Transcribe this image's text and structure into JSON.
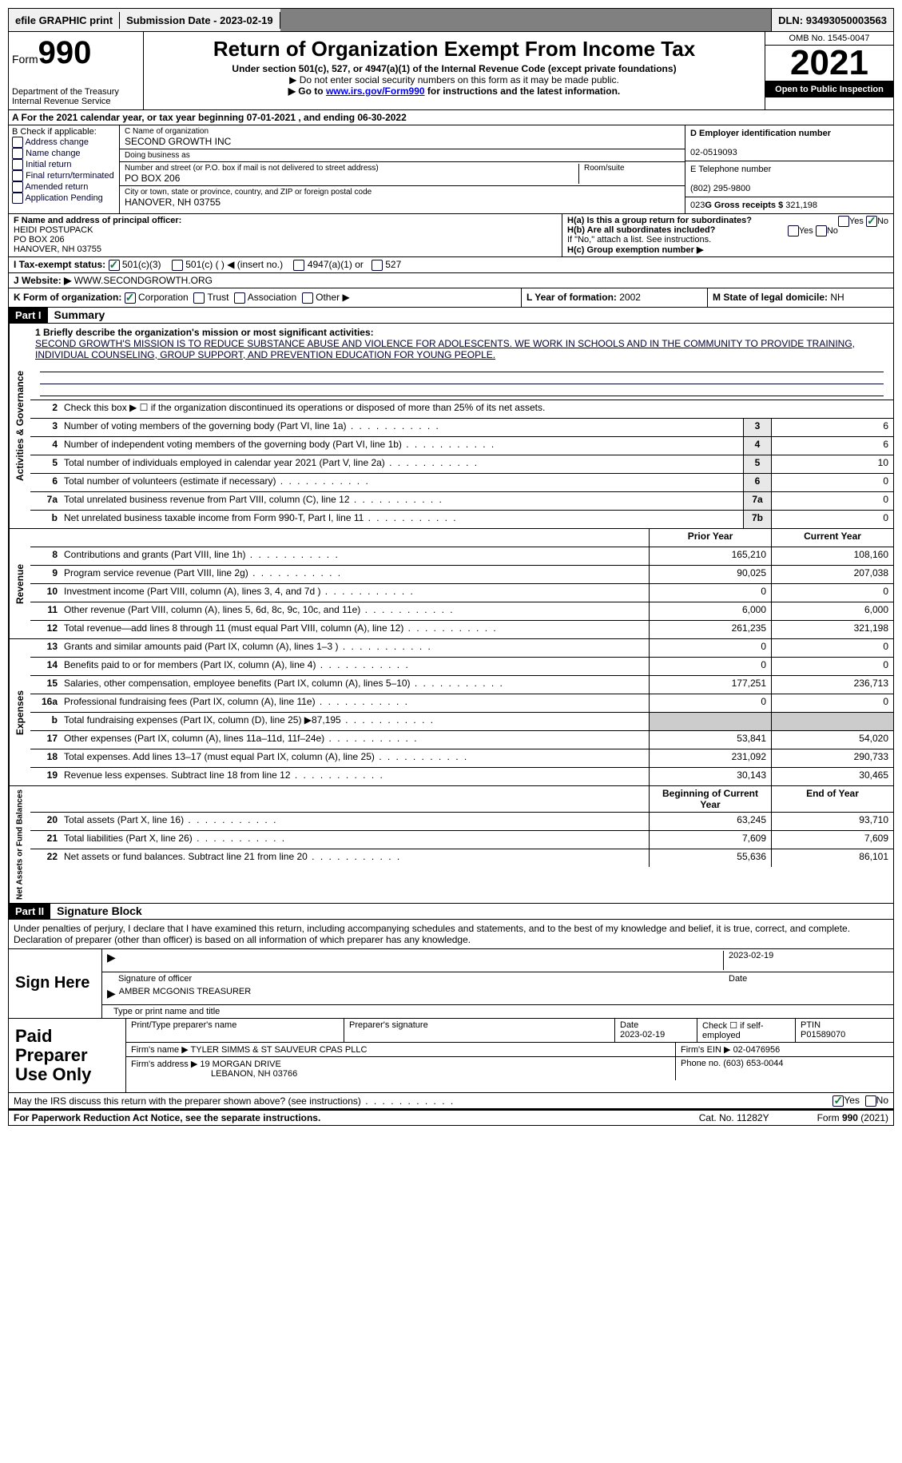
{
  "topbar": {
    "efile": "efile GRAPHIC print",
    "submission_label": "Submission Date - ",
    "submission_date": "2023-02-19",
    "dln_label": "DLN: ",
    "dln": "93493050003563"
  },
  "header": {
    "form_label": "Form",
    "form_no": "990",
    "dept": "Department of the Treasury\nInternal Revenue Service",
    "title": "Return of Organization Exempt From Income Tax",
    "sub": "Under section 501(c), 527, or 4947(a)(1) of the Internal Revenue Code (except private foundations)",
    "note1": "▶ Do not enter social security numbers on this form as it may be made public.",
    "note2_pre": "▶ Go to ",
    "note2_link": "www.irs.gov/Form990",
    "note2_post": " for instructions and the latest information.",
    "omb": "OMB No. 1545-0047",
    "year": "2021",
    "open": "Open to Public Inspection"
  },
  "sectionA": "A For the 2021 calendar year, or tax year beginning 07-01-2021   , and ending 06-30-2022",
  "colB": {
    "label": "B Check if applicable:",
    "items": [
      "Address change",
      "Name change",
      "Initial return",
      "Final return/terminated",
      "Amended return",
      "Application Pending"
    ]
  },
  "colC": {
    "name_label": "C Name of organization",
    "name": "SECOND GROWTH INC",
    "dba_label": "Doing business as",
    "dba": "",
    "addr_label": "Number and street (or P.O. box if mail is not delivered to street address)",
    "room_label": "Room/suite",
    "addr": "PO BOX 206",
    "city_label": "City or town, state or province, country, and ZIP or foreign postal code",
    "city": "HANOVER, NH  03755"
  },
  "colD": {
    "ein_label": "D Employer identification number",
    "ein": "02-0519093",
    "phone_label": "E Telephone number",
    "phone": "(802) 295-9800",
    "gross_label": "G Gross receipts $ ",
    "gross": "321,198"
  },
  "rowF": {
    "label": "F  Name and address of principal officer:",
    "name": "HEIDI POSTUPACK",
    "addr1": "PO BOX 206",
    "addr2": "HANOVER, NH  03755"
  },
  "rowH": {
    "ha": "H(a)  Is this a group return for subordinates?",
    "hb": "H(b)  Are all subordinates included?",
    "hb_note": "If \"No,\" attach a list. See instructions.",
    "hc": "H(c)  Group exemption number ▶",
    "yes": "Yes",
    "no": "No"
  },
  "rowI": {
    "label": "I   Tax-exempt status:",
    "opts": [
      "501(c)(3)",
      "501(c) (  ) ◀ (insert no.)",
      "4947(a)(1) or",
      "527"
    ]
  },
  "rowJ": {
    "label": "J   Website: ▶  ",
    "val": "WWW.SECONDGROWTH.ORG"
  },
  "rowK": {
    "label": "K Form of organization:",
    "opts": [
      "Corporation",
      "Trust",
      "Association",
      "Other ▶"
    ]
  },
  "rowL": {
    "label": "L Year of formation: ",
    "val": "2002"
  },
  "rowM": {
    "label": "M State of legal domicile: ",
    "val": "NH"
  },
  "part1": {
    "header": "Part I",
    "title": "Summary",
    "mission_label": "1  Briefly describe the organization's mission or most significant activities:",
    "mission": "SECOND GROWTH'S MISSION IS TO REDUCE SUBSTANCE ABUSE AND VIOLENCE FOR ADOLESCENTS. WE WORK IN SCHOOLS AND IN THE COMMUNITY TO PROVIDE TRAINING, INDIVIDUAL COUNSELING, GROUP SUPPORT, AND PREVENTION EDUCATION FOR YOUNG PEOPLE.",
    "line2": "Check this box ▶ ☐  if the organization discontinued its operations or disposed of more than 25% of its net assets."
  },
  "sections": {
    "gov": "Activities & Governance",
    "rev": "Revenue",
    "exp": "Expenses",
    "net": "Net Assets or Fund Balances"
  },
  "lines_gov": [
    {
      "n": "3",
      "t": "Number of voting members of the governing body (Part VI, line 1a)",
      "box": "3",
      "v": "6"
    },
    {
      "n": "4",
      "t": "Number of independent voting members of the governing body (Part VI, line 1b)",
      "box": "4",
      "v": "6"
    },
    {
      "n": "5",
      "t": "Total number of individuals employed in calendar year 2021 (Part V, line 2a)",
      "box": "5",
      "v": "10"
    },
    {
      "n": "6",
      "t": "Total number of volunteers (estimate if necessary)",
      "box": "6",
      "v": "0"
    },
    {
      "n": "7a",
      "t": "Total unrelated business revenue from Part VIII, column (C), line 12",
      "box": "7a",
      "v": "0"
    },
    {
      "n": "b",
      "t": "Net unrelated business taxable income from Form 990-T, Part I, line 11",
      "box": "7b",
      "v": "0"
    }
  ],
  "col_headers": {
    "prior": "Prior Year",
    "current": "Current Year",
    "beg": "Beginning of Current Year",
    "end": "End of Year"
  },
  "lines_rev": [
    {
      "n": "8",
      "t": "Contributions and grants (Part VIII, line 1h)",
      "p": "165,210",
      "c": "108,160"
    },
    {
      "n": "9",
      "t": "Program service revenue (Part VIII, line 2g)",
      "p": "90,025",
      "c": "207,038"
    },
    {
      "n": "10",
      "t": "Investment income (Part VIII, column (A), lines 3, 4, and 7d )",
      "p": "0",
      "c": "0"
    },
    {
      "n": "11",
      "t": "Other revenue (Part VIII, column (A), lines 5, 6d, 8c, 9c, 10c, and 11e)",
      "p": "6,000",
      "c": "6,000"
    },
    {
      "n": "12",
      "t": "Total revenue—add lines 8 through 11 (must equal Part VIII, column (A), line 12)",
      "p": "261,235",
      "c": "321,198"
    }
  ],
  "lines_exp": [
    {
      "n": "13",
      "t": "Grants and similar amounts paid (Part IX, column (A), lines 1–3 )",
      "p": "0",
      "c": "0"
    },
    {
      "n": "14",
      "t": "Benefits paid to or for members (Part IX, column (A), line 4)",
      "p": "0",
      "c": "0"
    },
    {
      "n": "15",
      "t": "Salaries, other compensation, employee benefits (Part IX, column (A), lines 5–10)",
      "p": "177,251",
      "c": "236,713"
    },
    {
      "n": "16a",
      "t": "Professional fundraising fees (Part IX, column (A), line 11e)",
      "p": "0",
      "c": "0"
    },
    {
      "n": "b",
      "t": "Total fundraising expenses (Part IX, column (D), line 25) ▶87,195",
      "p": "",
      "c": "",
      "shade": true
    },
    {
      "n": "17",
      "t": "Other expenses (Part IX, column (A), lines 11a–11d, 11f–24e)",
      "p": "53,841",
      "c": "54,020"
    },
    {
      "n": "18",
      "t": "Total expenses. Add lines 13–17 (must equal Part IX, column (A), line 25)",
      "p": "231,092",
      "c": "290,733"
    },
    {
      "n": "19",
      "t": "Revenue less expenses. Subtract line 18 from line 12",
      "p": "30,143",
      "c": "30,465"
    }
  ],
  "lines_net": [
    {
      "n": "20",
      "t": "Total assets (Part X, line 16)",
      "p": "63,245",
      "c": "93,710"
    },
    {
      "n": "21",
      "t": "Total liabilities (Part X, line 26)",
      "p": "7,609",
      "c": "7,609"
    },
    {
      "n": "22",
      "t": "Net assets or fund balances. Subtract line 21 from line 20",
      "p": "55,636",
      "c": "86,101"
    }
  ],
  "part2": {
    "header": "Part II",
    "title": "Signature Block",
    "decl": "Under penalties of perjury, I declare that I have examined this return, including accompanying schedules and statements, and to the best of my knowledge and belief, it is true, correct, and complete. Declaration of preparer (other than officer) is based on all information of which preparer has any knowledge."
  },
  "sign": {
    "label": "Sign Here",
    "sig_label": "Signature of officer",
    "date_label": "Date",
    "date": "2023-02-19",
    "name": "AMBER MCGONIS  TREASURER",
    "name_label": "Type or print name and title"
  },
  "prep": {
    "label": "Paid Preparer Use Only",
    "h1": "Print/Type preparer's name",
    "h2": "Preparer's signature",
    "h3": "Date",
    "h3v": "2023-02-19",
    "h4": "Check ☐ if self-employed",
    "h5": "PTIN",
    "h5v": "P01589070",
    "firm_name_label": "Firm's name    ▶ ",
    "firm_name": "TYLER SIMMS & ST SAUVEUR CPAS PLLC",
    "firm_ein_label": "Firm's EIN ▶ ",
    "firm_ein": "02-0476956",
    "firm_addr_label": "Firm's address ▶ ",
    "firm_addr": "19 MORGAN DRIVE",
    "firm_city": "LEBANON, NH  03766",
    "phone_label": "Phone no. ",
    "phone": "(603) 653-0044"
  },
  "footer": {
    "q": "May the IRS discuss this return with the preparer shown above? (see instructions)",
    "yes": "Yes",
    "no": "No",
    "pra": "For Paperwork Reduction Act Notice, see the separate instructions.",
    "cat": "Cat. No. 11282Y",
    "form": "Form 990 (2021)"
  }
}
